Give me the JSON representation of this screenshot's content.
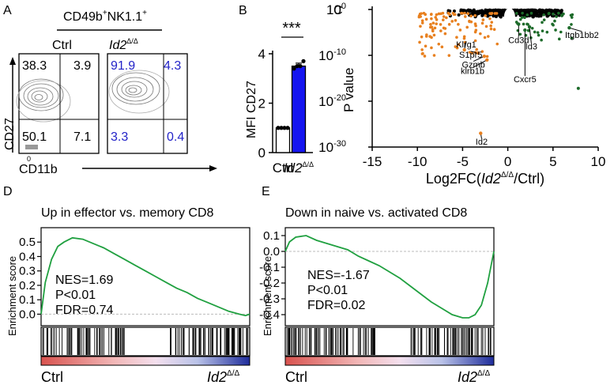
{
  "panels": {
    "A": {
      "letter": "A",
      "gate_label": "CD49b",
      "gate_sup": "+",
      "gate_label2": "NK1.1",
      "gate_sup2": "+",
      "ctrl_title": "Ctrl",
      "ko_title": "Id2",
      "ko_sup": "Δ/Δ",
      "y_axis": "CD27",
      "x_axis": "CD11b",
      "zero_tick": "0",
      "ctrl_quadrants": {
        "ul": "38.3",
        "ur": "3.9",
        "ll": "50.1",
        "lr": "7.1"
      },
      "ko_quadrants": {
        "ul": "91.9",
        "ur": "4.3",
        "ll": "3.3",
        "lr": "0.4"
      }
    },
    "B": {
      "letter": "B",
      "significance": "***"
    },
    "C": {
      "letter": "C"
    },
    "D": {
      "letter": "D",
      "title": "Up in effector vs. memory CD8",
      "ylabel": "Enrichment score",
      "nes": "NES=1.69",
      "p": "P<0.01",
      "fdr": "FDR=0.74",
      "left_label": "Ctrl",
      "right_label": "Id2",
      "right_sup": "Δ/Δ"
    },
    "E": {
      "letter": "E",
      "title": "Down in naive vs. activated CD8",
      "ylabel": "Enrichment score",
      "nes": "NES=-1.67",
      "p": "P<0.01",
      "fdr": "FDR=0.02",
      "left_label": "Ctrl",
      "right_label": "Id2",
      "right_sup": "Δ/Δ"
    }
  },
  "chart_data": [
    {
      "panel": "B",
      "type": "bar",
      "ylabel": "MFI CD27",
      "categories": [
        "Ctrl",
        "Id2Δ/Δ"
      ],
      "category_labels": [
        {
          "text": "Ctrl",
          "sup": ""
        },
        {
          "text": "Id2",
          "sup": "Δ/Δ"
        }
      ],
      "values": [
        1.0,
        3.5
      ],
      "errors": [
        0.02,
        0.12
      ],
      "points": [
        [
          1.0,
          1.0,
          1.0,
          1.0
        ],
        [
          3.4,
          3.5,
          3.5,
          3.7
        ]
      ],
      "colors": [
        "#ffffff",
        "#1515f0"
      ],
      "ylim": [
        0,
        4
      ],
      "yticks": [
        0,
        2,
        4
      ],
      "significance": "***"
    },
    {
      "panel": "C",
      "type": "scatter",
      "xlabel": "Log2FC(",
      "xlabel_italic": "Id2",
      "xlabel_sup": "Δ/Δ",
      "xlabel_end": "/Ctrl)",
      "ylabel": "P value",
      "xlim": [
        -15,
        10
      ],
      "xticks": [
        -15,
        -10,
        -5,
        0,
        5,
        10
      ],
      "ylim_log10": [
        -30,
        0
      ],
      "yticks_log10": [
        0,
        -10,
        -20,
        -30
      ],
      "ytick_base": "10",
      "colors": {
        "ns": "#000000",
        "down": "#e8801f",
        "up": "#1d6b2a"
      },
      "labels": [
        {
          "text": "Klrg1",
          "x": -4.8,
          "y": -8.8,
          "tx": -4.6,
          "ty": -7.6
        },
        {
          "text": "S1pr5",
          "x": -3.3,
          "y": -9.5,
          "tx": -4.1,
          "ty": -9.8
        },
        {
          "text": "Gzmb",
          "x": -2.6,
          "y": -10.2,
          "tx": -3.8,
          "ty": -12.0
        },
        {
          "text": "klrb1b",
          "x": -2.3,
          "y": -11.0,
          "tx": -3.9,
          "ty": -13.4
        },
        {
          "text": "Cd3d",
          "x": 1.2,
          "y": -3.2,
          "tx": 1.2,
          "ty": -6.6
        },
        {
          "text": "Id3",
          "x": 2.4,
          "y": -3.8,
          "tx": 2.6,
          "ty": -8.0
        },
        {
          "text": "Itgb1bb2",
          "x": 6.8,
          "y": -4.0,
          "tx": 8.2,
          "ty": -5.5
        },
        {
          "text": "Cxcr5",
          "x": 1.9,
          "y": -4.5,
          "tx": 1.9,
          "ty": -15.2
        },
        {
          "text": "Id2",
          "x": -3.0,
          "y": -27.0,
          "tx": -2.9,
          "ty": -28.8
        }
      ]
    },
    {
      "panel": "D",
      "type": "line",
      "ylim": [
        -0.08,
        0.6
      ],
      "yticks": [
        0.5,
        0.4,
        0.3,
        0.2,
        0.1,
        0.0
      ],
      "line_color": "#20a040",
      "curve_x": [
        0,
        0.02,
        0.05,
        0.08,
        0.11,
        0.15,
        0.2,
        0.25,
        0.3,
        0.35,
        0.4,
        0.45,
        0.5,
        0.55,
        0.6,
        0.65,
        0.7,
        0.75,
        0.8,
        0.85,
        0.9,
        0.95,
        0.98,
        1.0
      ],
      "curve_y": [
        0.0,
        0.22,
        0.38,
        0.47,
        0.5,
        0.53,
        0.52,
        0.49,
        0.46,
        0.42,
        0.38,
        0.34,
        0.3,
        0.26,
        0.22,
        0.18,
        0.15,
        0.11,
        0.08,
        0.05,
        0.02,
        0.0,
        -0.01,
        0.0
      ]
    },
    {
      "panel": "E",
      "type": "line",
      "ylim": [
        -0.47,
        0.15
      ],
      "yticks": [
        0.1,
        0.0,
        -0.1,
        -0.2,
        -0.3,
        -0.4
      ],
      "line_color": "#20a040",
      "curve_x": [
        0,
        0.02,
        0.05,
        0.1,
        0.15,
        0.2,
        0.25,
        0.3,
        0.35,
        0.4,
        0.45,
        0.5,
        0.55,
        0.6,
        0.65,
        0.7,
        0.75,
        0.8,
        0.85,
        0.88,
        0.91,
        0.94,
        0.97,
        1.0
      ],
      "curve_y": [
        0.0,
        0.06,
        0.09,
        0.1,
        0.07,
        0.05,
        0.03,
        0.01,
        -0.03,
        -0.06,
        -0.09,
        -0.13,
        -0.17,
        -0.22,
        -0.27,
        -0.32,
        -0.36,
        -0.4,
        -0.42,
        -0.42,
        -0.4,
        -0.34,
        -0.2,
        0.0
      ]
    }
  ]
}
